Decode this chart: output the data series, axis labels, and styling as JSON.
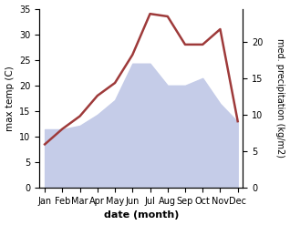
{
  "months": [
    "Jan",
    "Feb",
    "Mar",
    "Apr",
    "May",
    "Jun",
    "Jul",
    "Aug",
    "Sep",
    "Oct",
    "Nov",
    "Dec"
  ],
  "temperature": [
    8.5,
    11.5,
    14.0,
    18.0,
    20.5,
    26.0,
    34.0,
    33.5,
    28.0,
    28.0,
    31.0,
    13.0
  ],
  "precipitation": [
    8.0,
    8.0,
    8.5,
    10.0,
    12.0,
    17.0,
    17.0,
    14.0,
    14.0,
    15.0,
    11.5,
    9.0
  ],
  "temp_color": "#9e3a3a",
  "precip_fill_color": "#c5cce8",
  "temp_ylim": [
    0,
    35
  ],
  "precip_ylim": [
    0,
    24.5
  ],
  "temp_yticks": [
    0,
    5,
    10,
    15,
    20,
    25,
    30,
    35
  ],
  "precip_ytick_vals": [
    0,
    5,
    10,
    15,
    20
  ],
  "precip_ytick_labels": [
    "0",
    "5",
    "10",
    "15",
    "20"
  ],
  "xlabel": "date (month)",
  "ylabel_left": "max temp (C)",
  "ylabel_right": "med. precipitation (kg/m2)",
  "tick_fontsize": 7.0,
  "label_fontsize": 7.5
}
